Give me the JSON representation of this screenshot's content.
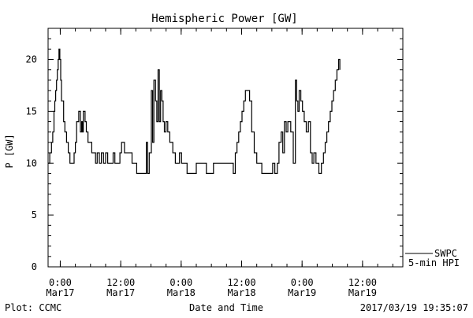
{
  "chart_data": {
    "type": "line",
    "title": "Hemispheric Power [GW]",
    "ylabel": "P [GW]",
    "xlabel": "Date and Time",
    "ylim": [
      0,
      23
    ],
    "yticks": [
      0,
      5,
      10,
      15,
      20
    ],
    "xlim": [
      "2017-03-16 21:35",
      "2017-03-19 20:00"
    ],
    "xticks": [
      {
        "t": "2017-03-17 00:00",
        "time": "0:00",
        "date": "Mar17"
      },
      {
        "t": "2017-03-17 12:00",
        "time": "12:00",
        "date": "Mar17"
      },
      {
        "t": "2017-03-18 00:00",
        "time": "0:00",
        "date": "Mar18"
      },
      {
        "t": "2017-03-18 12:00",
        "time": "12:00",
        "date": "Mar18"
      },
      {
        "t": "2017-03-19 00:00",
        "time": "0:00",
        "date": "Mar19"
      },
      {
        "t": "2017-03-19 12:00",
        "time": "12:00",
        "date": "Mar19"
      }
    ],
    "series": [
      {
        "name": "SWPC 5-min HPI",
        "color": "#000000",
        "points": [
          [
            "2017-03-16 21:35",
            10
          ],
          [
            "2017-03-16 21:55",
            11
          ],
          [
            "2017-03-16 22:15",
            12
          ],
          [
            "2017-03-16 22:30",
            13
          ],
          [
            "2017-03-16 22:45",
            15
          ],
          [
            "2017-03-16 22:55",
            16
          ],
          [
            "2017-03-16 23:05",
            17
          ],
          [
            "2017-03-16 23:15",
            18
          ],
          [
            "2017-03-16 23:25",
            19
          ],
          [
            "2017-03-16 23:35",
            20
          ],
          [
            "2017-03-16 23:45",
            21
          ],
          [
            "2017-03-16 23:55",
            20
          ],
          [
            "2017-03-17 00:05",
            18
          ],
          [
            "2017-03-17 00:15",
            16
          ],
          [
            "2017-03-17 00:40",
            14
          ],
          [
            "2017-03-17 00:55",
            13
          ],
          [
            "2017-03-17 01:15",
            12
          ],
          [
            "2017-03-17 01:35",
            11
          ],
          [
            "2017-03-17 01:55",
            10
          ],
          [
            "2017-03-17 02:45",
            11
          ],
          [
            "2017-03-17 03:00",
            12
          ],
          [
            "2017-03-17 03:15",
            14
          ],
          [
            "2017-03-17 03:40",
            15
          ],
          [
            "2017-03-17 04:00",
            13
          ],
          [
            "2017-03-17 04:15",
            14
          ],
          [
            "2017-03-17 04:25",
            13
          ],
          [
            "2017-03-17 04:35",
            15
          ],
          [
            "2017-03-17 04:55",
            14
          ],
          [
            "2017-03-17 05:10",
            13
          ],
          [
            "2017-03-17 05:30",
            12
          ],
          [
            "2017-03-17 06:15",
            11
          ],
          [
            "2017-03-17 07:00",
            10
          ],
          [
            "2017-03-17 07:20",
            11
          ],
          [
            "2017-03-17 07:45",
            10
          ],
          [
            "2017-03-17 08:10",
            11
          ],
          [
            "2017-03-17 08:35",
            10
          ],
          [
            "2017-03-17 09:00",
            11
          ],
          [
            "2017-03-17 09:25",
            10
          ],
          [
            "2017-03-17 10:30",
            11
          ],
          [
            "2017-03-17 10:50",
            10
          ],
          [
            "2017-03-17 11:50",
            11
          ],
          [
            "2017-03-17 12:10",
            12
          ],
          [
            "2017-03-17 12:45",
            11
          ],
          [
            "2017-03-17 14:15",
            10
          ],
          [
            "2017-03-17 15:10",
            9
          ],
          [
            "2017-03-17 17:05",
            12
          ],
          [
            "2017-03-17 17:20",
            9
          ],
          [
            "2017-03-17 17:40",
            11
          ],
          [
            "2017-03-17 18:05",
            17
          ],
          [
            "2017-03-17 18:20",
            12
          ],
          [
            "2017-03-17 18:35",
            18
          ],
          [
            "2017-03-17 18:55",
            16
          ],
          [
            "2017-03-17 19:10",
            14
          ],
          [
            "2017-03-17 19:25",
            19
          ],
          [
            "2017-03-17 19:40",
            14
          ],
          [
            "2017-03-17 19:55",
            17
          ],
          [
            "2017-03-17 20:10",
            16
          ],
          [
            "2017-03-17 20:25",
            14
          ],
          [
            "2017-03-17 20:40",
            13
          ],
          [
            "2017-03-17 21:00",
            14
          ],
          [
            "2017-03-17 21:20",
            13
          ],
          [
            "2017-03-17 21:45",
            12
          ],
          [
            "2017-03-17 22:20",
            11
          ],
          [
            "2017-03-17 22:50",
            10
          ],
          [
            "2017-03-17 23:40",
            11
          ],
          [
            "2017-03-18 00:05",
            10
          ],
          [
            "2017-03-18 01:10",
            9
          ],
          [
            "2017-03-18 03:00",
            10
          ],
          [
            "2017-03-18 05:00",
            9
          ],
          [
            "2017-03-18 06:25",
            10
          ],
          [
            "2017-03-18 10:20",
            9
          ],
          [
            "2017-03-18 10:45",
            11
          ],
          [
            "2017-03-18 11:05",
            12
          ],
          [
            "2017-03-18 11:25",
            13
          ],
          [
            "2017-03-18 11:45",
            14
          ],
          [
            "2017-03-18 12:05",
            15
          ],
          [
            "2017-03-18 12:25",
            16
          ],
          [
            "2017-03-18 12:45",
            17
          ],
          [
            "2017-03-18 13:35",
            16
          ],
          [
            "2017-03-18 14:00",
            13
          ],
          [
            "2017-03-18 14:30",
            11
          ],
          [
            "2017-03-18 15:00",
            10
          ],
          [
            "2017-03-18 16:00",
            9
          ],
          [
            "2017-03-18 18:10",
            10
          ],
          [
            "2017-03-18 18:35",
            9
          ],
          [
            "2017-03-18 19:05",
            10
          ],
          [
            "2017-03-18 19:25",
            12
          ],
          [
            "2017-03-18 19:50",
            13
          ],
          [
            "2017-03-18 20:10",
            11
          ],
          [
            "2017-03-18 20:30",
            14
          ],
          [
            "2017-03-18 20:50",
            13
          ],
          [
            "2017-03-18 21:10",
            14
          ],
          [
            "2017-03-18 21:45",
            13
          ],
          [
            "2017-03-18 22:15",
            10
          ],
          [
            "2017-03-18 22:40",
            18
          ],
          [
            "2017-03-18 22:55",
            16
          ],
          [
            "2017-03-18 23:10",
            15
          ],
          [
            "2017-03-18 23:25",
            17
          ],
          [
            "2017-03-18 23:45",
            16
          ],
          [
            "2017-03-19 00:05",
            15
          ],
          [
            "2017-03-19 00:25",
            14
          ],
          [
            "2017-03-19 00:50",
            13
          ],
          [
            "2017-03-19 01:15",
            14
          ],
          [
            "2017-03-19 01:40",
            11
          ],
          [
            "2017-03-19 02:00",
            10
          ],
          [
            "2017-03-19 02:20",
            11
          ],
          [
            "2017-03-19 02:45",
            10
          ],
          [
            "2017-03-19 03:20",
            9
          ],
          [
            "2017-03-19 03:50",
            10
          ],
          [
            "2017-03-19 04:15",
            11
          ],
          [
            "2017-03-19 04:35",
            12
          ],
          [
            "2017-03-19 04:55",
            13
          ],
          [
            "2017-03-19 05:15",
            14
          ],
          [
            "2017-03-19 05:35",
            15
          ],
          [
            "2017-03-19 05:55",
            16
          ],
          [
            "2017-03-19 06:15",
            17
          ],
          [
            "2017-03-19 06:35",
            18
          ],
          [
            "2017-03-19 06:55",
            19
          ],
          [
            "2017-03-19 07:15",
            20
          ],
          [
            "2017-03-19 07:30",
            19
          ]
        ]
      }
    ]
  },
  "legend": {
    "line1": "SWPC",
    "line2": "5-min HPI"
  },
  "footer": {
    "left": "Plot: CCMC",
    "center": "Date and Time",
    "right": "2017/03/19 19:35:07"
  }
}
